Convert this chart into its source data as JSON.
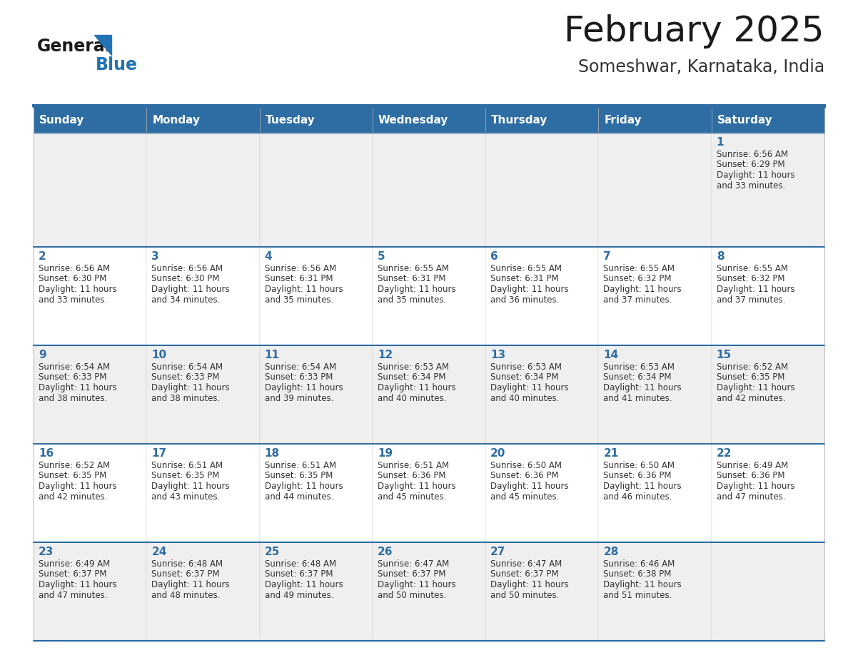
{
  "title": "February 2025",
  "subtitle": "Someshwar, Karnataka, India",
  "header_bg": "#2E6DA4",
  "header_text_color": "#FFFFFF",
  "cell_bg_light": "#EFEFEF",
  "cell_bg_white": "#FFFFFF",
  "border_color": "#2E6DA4",
  "day_names": [
    "Sunday",
    "Monday",
    "Tuesday",
    "Wednesday",
    "Thursday",
    "Friday",
    "Saturday"
  ],
  "title_color": "#1a1a1a",
  "subtitle_color": "#333333",
  "day_number_color": "#2E6DA4",
  "cell_text_color": "#333333",
  "logo_general_color": "#1a1a1a",
  "logo_blue_color": "#2272B5",
  "calendar": [
    [
      {
        "day": 0,
        "sunrise": "",
        "sunset": "",
        "daylight": ""
      },
      {
        "day": 0,
        "sunrise": "",
        "sunset": "",
        "daylight": ""
      },
      {
        "day": 0,
        "sunrise": "",
        "sunset": "",
        "daylight": ""
      },
      {
        "day": 0,
        "sunrise": "",
        "sunset": "",
        "daylight": ""
      },
      {
        "day": 0,
        "sunrise": "",
        "sunset": "",
        "daylight": ""
      },
      {
        "day": 0,
        "sunrise": "",
        "sunset": "",
        "daylight": ""
      },
      {
        "day": 1,
        "sunrise": "6:56 AM",
        "sunset": "6:29 PM",
        "daylight": "11 hours and 33 minutes."
      }
    ],
    [
      {
        "day": 2,
        "sunrise": "6:56 AM",
        "sunset": "6:30 PM",
        "daylight": "11 hours and 33 minutes."
      },
      {
        "day": 3,
        "sunrise": "6:56 AM",
        "sunset": "6:30 PM",
        "daylight": "11 hours and 34 minutes."
      },
      {
        "day": 4,
        "sunrise": "6:56 AM",
        "sunset": "6:31 PM",
        "daylight": "11 hours and 35 minutes."
      },
      {
        "day": 5,
        "sunrise": "6:55 AM",
        "sunset": "6:31 PM",
        "daylight": "11 hours and 35 minutes."
      },
      {
        "day": 6,
        "sunrise": "6:55 AM",
        "sunset": "6:31 PM",
        "daylight": "11 hours and 36 minutes."
      },
      {
        "day": 7,
        "sunrise": "6:55 AM",
        "sunset": "6:32 PM",
        "daylight": "11 hours and 37 minutes."
      },
      {
        "day": 8,
        "sunrise": "6:55 AM",
        "sunset": "6:32 PM",
        "daylight": "11 hours and 37 minutes."
      }
    ],
    [
      {
        "day": 9,
        "sunrise": "6:54 AM",
        "sunset": "6:33 PM",
        "daylight": "11 hours and 38 minutes."
      },
      {
        "day": 10,
        "sunrise": "6:54 AM",
        "sunset": "6:33 PM",
        "daylight": "11 hours and 38 minutes."
      },
      {
        "day": 11,
        "sunrise": "6:54 AM",
        "sunset": "6:33 PM",
        "daylight": "11 hours and 39 minutes."
      },
      {
        "day": 12,
        "sunrise": "6:53 AM",
        "sunset": "6:34 PM",
        "daylight": "11 hours and 40 minutes."
      },
      {
        "day": 13,
        "sunrise": "6:53 AM",
        "sunset": "6:34 PM",
        "daylight": "11 hours and 40 minutes."
      },
      {
        "day": 14,
        "sunrise": "6:53 AM",
        "sunset": "6:34 PM",
        "daylight": "11 hours and 41 minutes."
      },
      {
        "day": 15,
        "sunrise": "6:52 AM",
        "sunset": "6:35 PM",
        "daylight": "11 hours and 42 minutes."
      }
    ],
    [
      {
        "day": 16,
        "sunrise": "6:52 AM",
        "sunset": "6:35 PM",
        "daylight": "11 hours and 42 minutes."
      },
      {
        "day": 17,
        "sunrise": "6:51 AM",
        "sunset": "6:35 PM",
        "daylight": "11 hours and 43 minutes."
      },
      {
        "day": 18,
        "sunrise": "6:51 AM",
        "sunset": "6:35 PM",
        "daylight": "11 hours and 44 minutes."
      },
      {
        "day": 19,
        "sunrise": "6:51 AM",
        "sunset": "6:36 PM",
        "daylight": "11 hours and 45 minutes."
      },
      {
        "day": 20,
        "sunrise": "6:50 AM",
        "sunset": "6:36 PM",
        "daylight": "11 hours and 45 minutes."
      },
      {
        "day": 21,
        "sunrise": "6:50 AM",
        "sunset": "6:36 PM",
        "daylight": "11 hours and 46 minutes."
      },
      {
        "day": 22,
        "sunrise": "6:49 AM",
        "sunset": "6:36 PM",
        "daylight": "11 hours and 47 minutes."
      }
    ],
    [
      {
        "day": 23,
        "sunrise": "6:49 AM",
        "sunset": "6:37 PM",
        "daylight": "11 hours and 47 minutes."
      },
      {
        "day": 24,
        "sunrise": "6:48 AM",
        "sunset": "6:37 PM",
        "daylight": "11 hours and 48 minutes."
      },
      {
        "day": 25,
        "sunrise": "6:48 AM",
        "sunset": "6:37 PM",
        "daylight": "11 hours and 49 minutes."
      },
      {
        "day": 26,
        "sunrise": "6:47 AM",
        "sunset": "6:37 PM",
        "daylight": "11 hours and 50 minutes."
      },
      {
        "day": 27,
        "sunrise": "6:47 AM",
        "sunset": "6:37 PM",
        "daylight": "11 hours and 50 minutes."
      },
      {
        "day": 28,
        "sunrise": "6:46 AM",
        "sunset": "6:38 PM",
        "daylight": "11 hours and 51 minutes."
      },
      {
        "day": 0,
        "sunrise": "",
        "sunset": "",
        "daylight": ""
      }
    ]
  ]
}
